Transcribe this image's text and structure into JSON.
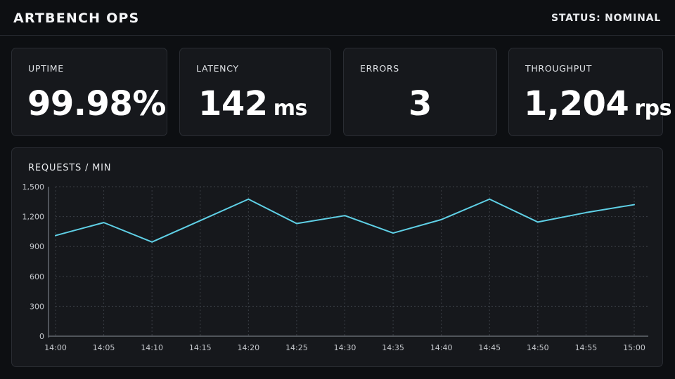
{
  "header": {
    "title": "ARTBENCH OPS",
    "status": "STATUS: NOMINAL"
  },
  "cards": [
    {
      "label": "UPTIME",
      "value": "99.98%",
      "unit": ""
    },
    {
      "label": "LATENCY",
      "value": "142",
      "unit": "ms"
    },
    {
      "label": "ERRORS",
      "value": "3",
      "unit": ""
    },
    {
      "label": "THROUGHPUT",
      "value": "1,204",
      "unit": "rps"
    }
  ],
  "panel": {
    "title": "REQUESTS / MIN"
  },
  "colors": {
    "line": "#5fd0e6",
    "grid": "#3a3e45",
    "background": "#0d0f12",
    "card": "#16181c"
  },
  "chart_data": {
    "type": "line",
    "title": "REQUESTS / MIN",
    "xlabel": "",
    "ylabel": "",
    "x": [
      "14:00",
      "14:05",
      "14:10",
      "14:15",
      "14:20",
      "14:25",
      "14:30",
      "14:35",
      "14:40",
      "14:45",
      "14:50",
      "14:55",
      "15:00"
    ],
    "y_ticks": [
      "0",
      "300",
      "600",
      "900",
      "1,200",
      "1,500"
    ],
    "ylim": [
      0,
      1500
    ],
    "grid": true,
    "legend": "none",
    "series": [
      {
        "values": [
          1010,
          1140,
          945,
          1160,
          1375,
          1130,
          1210,
          1035,
          1170,
          1375,
          1145,
          1240,
          1320
        ]
      }
    ]
  }
}
